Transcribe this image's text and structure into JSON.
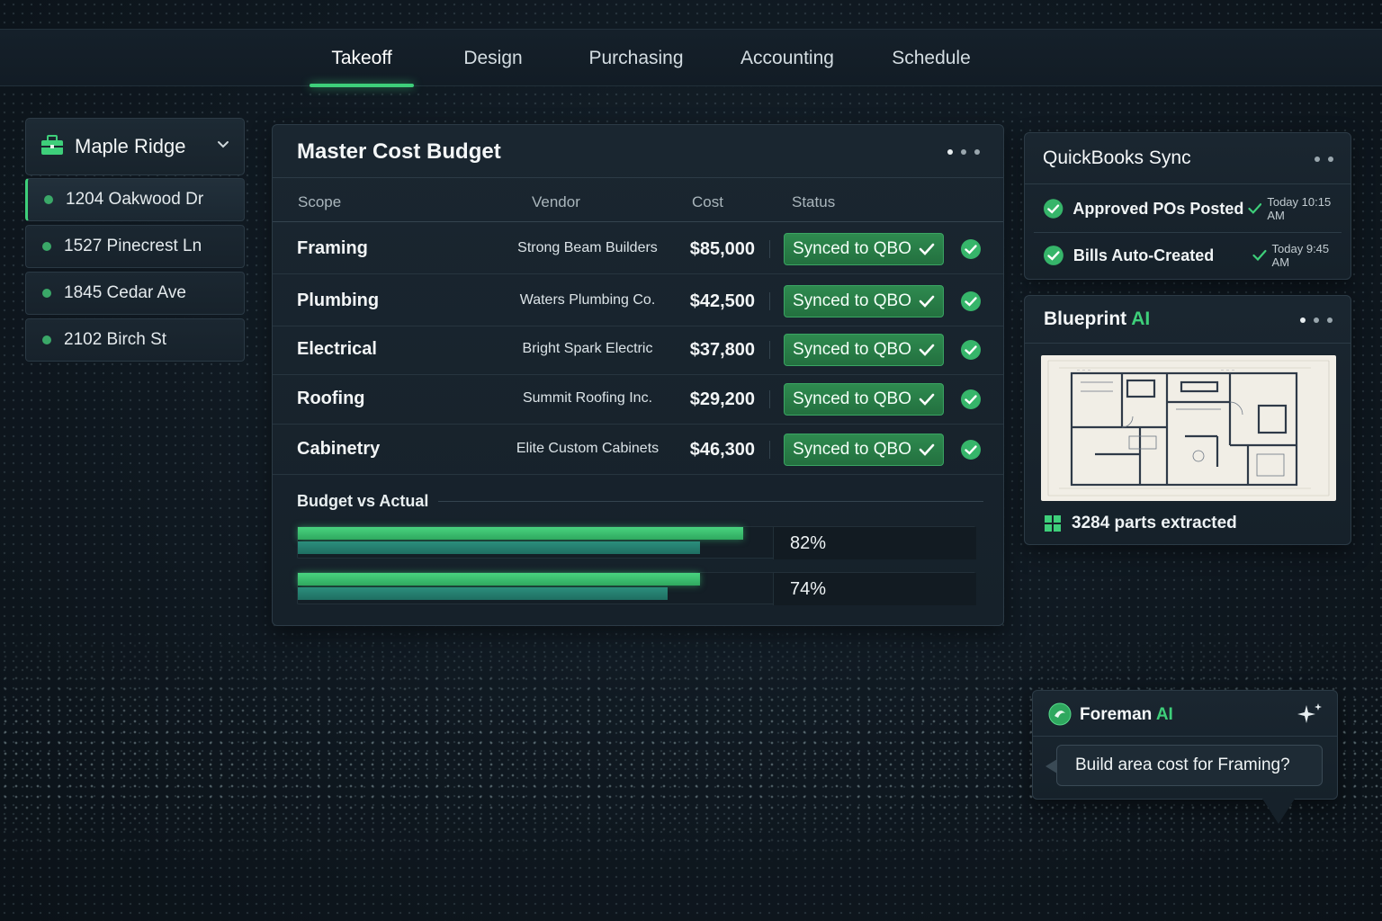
{
  "nav": {
    "tabs": [
      {
        "label": "Takeoff",
        "active": true
      },
      {
        "label": "Design",
        "active": false
      },
      {
        "label": "Purchasing",
        "active": false
      },
      {
        "label": "Accounting",
        "active": false
      },
      {
        "label": "Schedule",
        "active": false
      }
    ]
  },
  "sidebar": {
    "project": "Maple Ridge",
    "project_icon": "building-icon",
    "addresses": [
      {
        "label": "1204 Oakwood Dr",
        "active": true
      },
      {
        "label": "1527 Pinecrest Ln",
        "active": false
      },
      {
        "label": "1845 Cedar Ave",
        "active": false
      },
      {
        "label": "2102 Birch St",
        "active": false
      }
    ]
  },
  "budget": {
    "title": "Master Cost Budget",
    "columns": [
      "Scope",
      "Vendor",
      "Cost",
      "Status"
    ],
    "rows": [
      {
        "scope": "Framing",
        "vendor": "Strong Beam Builders",
        "cost": "$85,000",
        "status": "Synced to QBO"
      },
      {
        "scope": "Plumbing",
        "vendor": "Waters Plumbing Co.",
        "cost": "$42,500",
        "status": "Synced to QBO"
      },
      {
        "scope": "Electrical",
        "vendor": "Bright Spark Electric",
        "cost": "$37,800",
        "status": "Synced to QBO"
      },
      {
        "scope": "Roofing",
        "vendor": "Summit Roofing Inc.",
        "cost": "$29,200",
        "status": "Synced to QBO"
      },
      {
        "scope": "Cabinetry",
        "vendor": "Elite Custom Cabinets",
        "cost": "$46,300",
        "status": "Synced to QBO"
      }
    ],
    "bva": {
      "label": "Budget vs Actual",
      "bars": [
        {
          "pct_label": "82%",
          "budget_fraction": 0.82,
          "actual_fraction": 0.74
        },
        {
          "pct_label": "74%",
          "budget_fraction": 0.74,
          "actual_fraction": 0.68
        }
      ]
    }
  },
  "quickbooks": {
    "title": "QuickBooks Sync",
    "items": [
      {
        "label": "Approved POs Posted",
        "time": "Today 10:15 AM"
      },
      {
        "label": "Bills Auto-Created",
        "time": "Today 9:45 AM"
      }
    ]
  },
  "blueprint": {
    "title_main": "Blueprint",
    "title_accent": "AI",
    "parts": "3284 parts extracted"
  },
  "foreman": {
    "title_main": "Foreman",
    "title_accent": "AI",
    "prompt": "Build area cost for Framing?"
  },
  "colors": {
    "accent": "#3ecf7a",
    "background": "#0f1820",
    "panel": "#1a2630",
    "sync_button": "#2e8a4f"
  }
}
